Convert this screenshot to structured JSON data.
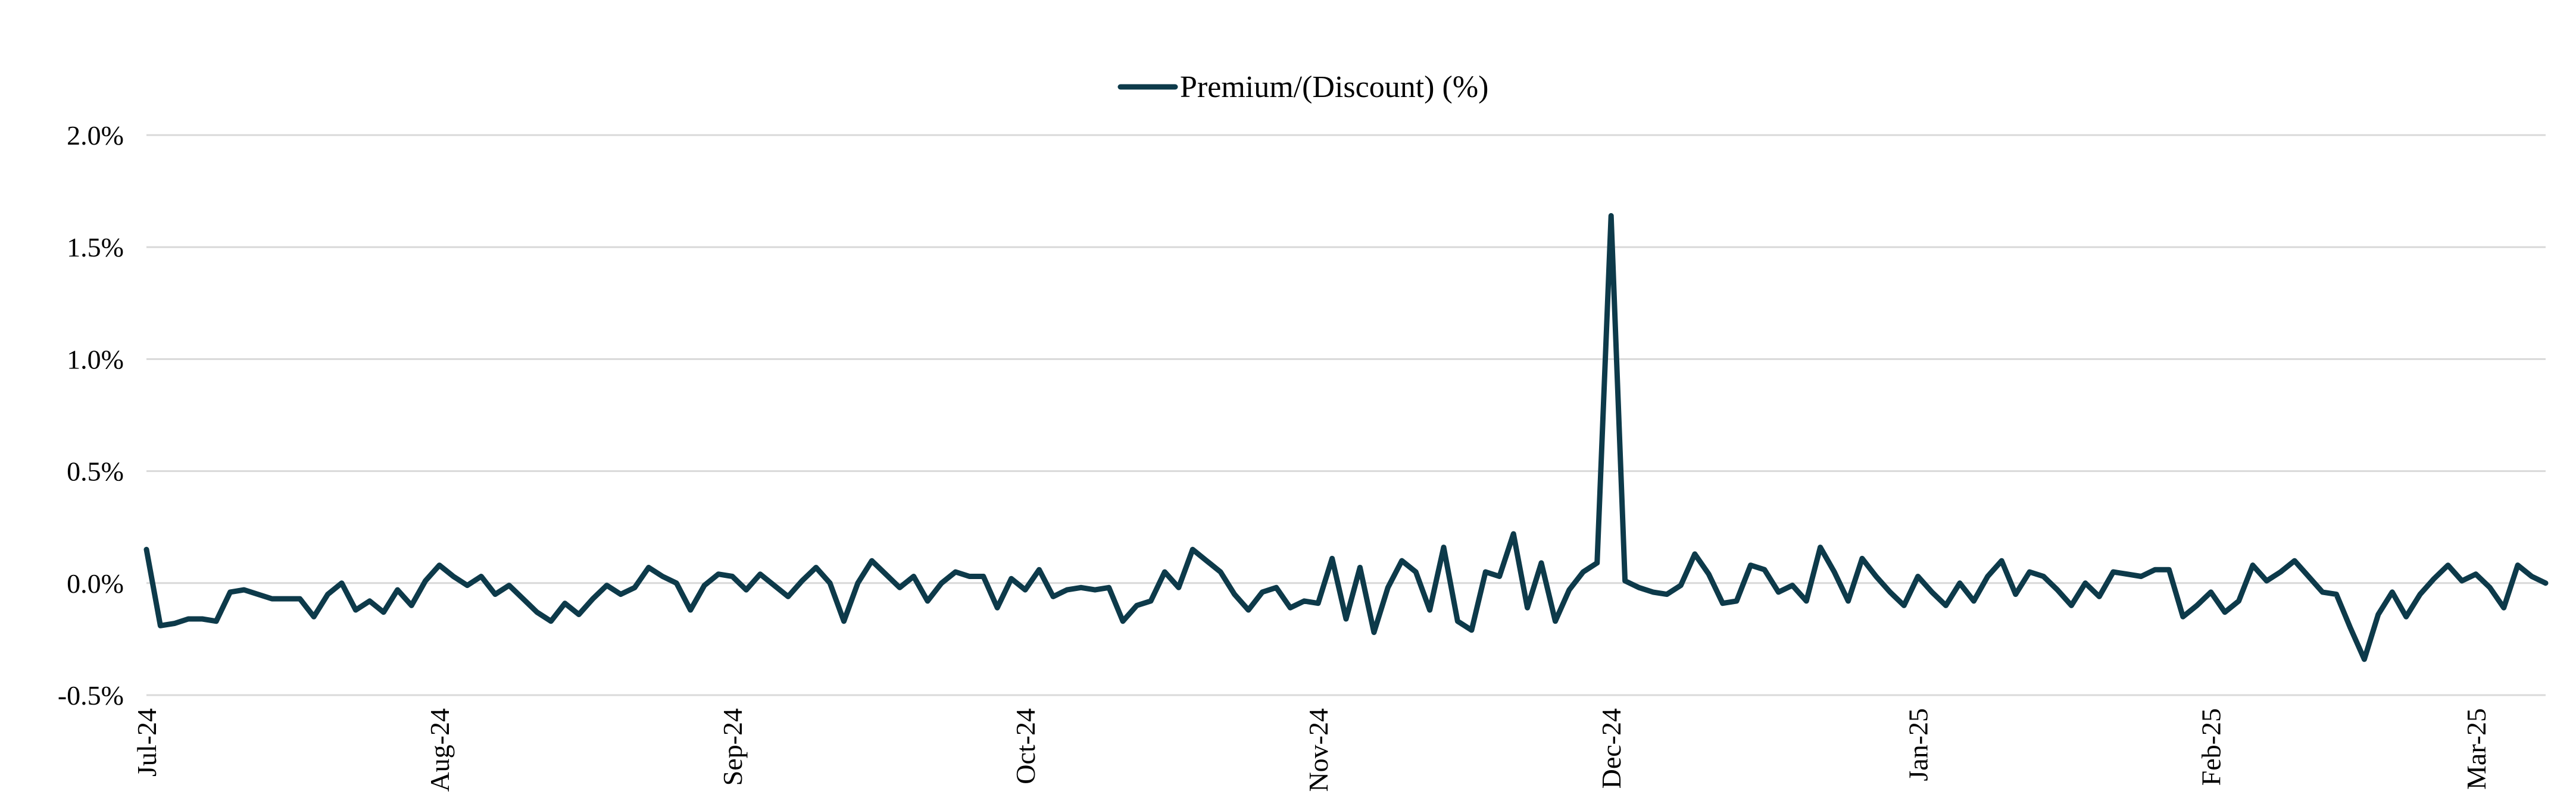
{
  "chart_data": {
    "type": "line",
    "categories": [
      "Jul-24",
      null,
      null,
      null,
      null,
      null,
      null,
      null,
      null,
      null,
      null,
      null,
      null,
      null,
      null,
      null,
      null,
      null,
      null,
      null,
      null,
      "Aug-24",
      null,
      null,
      null,
      null,
      null,
      null,
      null,
      null,
      null,
      null,
      null,
      null,
      null,
      null,
      null,
      null,
      null,
      null,
      null,
      null,
      "Sep-24",
      null,
      null,
      null,
      null,
      null,
      null,
      null,
      null,
      null,
      null,
      null,
      null,
      null,
      null,
      null,
      null,
      null,
      null,
      null,
      null,
      "Oct-24",
      null,
      null,
      null,
      null,
      null,
      null,
      null,
      null,
      null,
      null,
      null,
      null,
      null,
      null,
      null,
      null,
      null,
      null,
      null,
      null,
      "Nov-24",
      null,
      null,
      null,
      null,
      null,
      null,
      null,
      null,
      null,
      null,
      null,
      null,
      null,
      null,
      null,
      null,
      null,
      null,
      null,
      null,
      "Dec-24",
      null,
      null,
      null,
      null,
      null,
      null,
      null,
      null,
      null,
      null,
      null,
      null,
      null,
      null,
      null,
      null,
      null,
      null,
      null,
      null,
      null,
      "Jan-25",
      null,
      null,
      null,
      null,
      null,
      null,
      null,
      null,
      null,
      null,
      null,
      null,
      null,
      null,
      null,
      null,
      null,
      null,
      null,
      null,
      "Feb-25",
      null,
      null,
      null,
      null,
      null,
      null,
      null,
      null,
      null,
      null,
      null,
      null,
      null,
      null,
      null,
      null,
      null,
      null,
      "Mar-25",
      null,
      null,
      null,
      null,
      null
    ],
    "series": [
      {
        "name": "Premium/(Discount) (%)",
        "color": "#0d3a4a",
        "values": [
          0.15,
          -0.19,
          -0.18,
          -0.16,
          -0.16,
          -0.17,
          -0.04,
          -0.03,
          -0.05,
          -0.07,
          -0.07,
          -0.07,
          -0.15,
          -0.05,
          0.0,
          -0.12,
          -0.08,
          -0.13,
          -0.03,
          -0.1,
          0.01,
          0.08,
          0.03,
          -0.01,
          0.03,
          -0.05,
          -0.01,
          -0.07,
          -0.13,
          -0.17,
          -0.09,
          -0.14,
          -0.07,
          -0.01,
          -0.05,
          -0.02,
          0.07,
          0.03,
          0.0,
          -0.12,
          -0.01,
          0.04,
          0.03,
          -0.03,
          0.04,
          -0.01,
          -0.06,
          0.01,
          0.07,
          0.0,
          -0.17,
          0.0,
          0.1,
          0.04,
          -0.02,
          0.03,
          -0.08,
          0.0,
          0.05,
          0.03,
          0.03,
          -0.11,
          0.02,
          -0.03,
          0.06,
          -0.06,
          -0.03,
          -0.02,
          -0.03,
          -0.02,
          -0.17,
          -0.1,
          -0.08,
          0.05,
          -0.02,
          0.15,
          0.1,
          0.05,
          -0.05,
          -0.12,
          -0.04,
          -0.02,
          -0.11,
          -0.08,
          -0.09,
          0.11,
          -0.16,
          0.07,
          -0.22,
          -0.02,
          0.1,
          0.05,
          -0.12,
          0.16,
          -0.17,
          -0.21,
          0.05,
          0.03,
          0.22,
          -0.11,
          0.09,
          -0.17,
          -0.03,
          0.05,
          0.09,
          1.64,
          0.01,
          -0.02,
          -0.04,
          -0.05,
          -0.01,
          0.13,
          0.04,
          -0.09,
          -0.08,
          0.08,
          0.06,
          -0.04,
          -0.01,
          -0.08,
          0.16,
          0.05,
          -0.08,
          0.11,
          0.03,
          -0.04,
          -0.1,
          0.03,
          -0.04,
          -0.1,
          0.0,
          -0.08,
          0.03,
          0.1,
          -0.05,
          0.05,
          0.03,
          -0.03,
          -0.1,
          0.0,
          -0.06,
          0.05,
          0.04,
          0.03,
          0.06,
          0.06,
          -0.15,
          -0.1,
          -0.04,
          -0.13,
          -0.08,
          0.08,
          0.01,
          0.05,
          0.1,
          0.03,
          -0.04,
          -0.05,
          -0.2,
          -0.34,
          -0.14,
          -0.04,
          -0.15,
          -0.05,
          0.02,
          0.08,
          0.01,
          0.04,
          -0.02,
          -0.11,
          0.08,
          0.03,
          0.0
        ]
      }
    ],
    "ylim": [
      -0.5,
      2.0
    ],
    "yticks": [
      {
        "value": -0.5,
        "label": "-0.5%"
      },
      {
        "value": 0.0,
        "label": "0.0%"
      },
      {
        "value": 0.5,
        "label": "0.5%"
      },
      {
        "value": 1.0,
        "label": "1.0%"
      },
      {
        "value": 1.5,
        "label": "1.5%"
      },
      {
        "value": 2.0,
        "label": "2.0%"
      }
    ],
    "grid": true,
    "legend": "top"
  }
}
